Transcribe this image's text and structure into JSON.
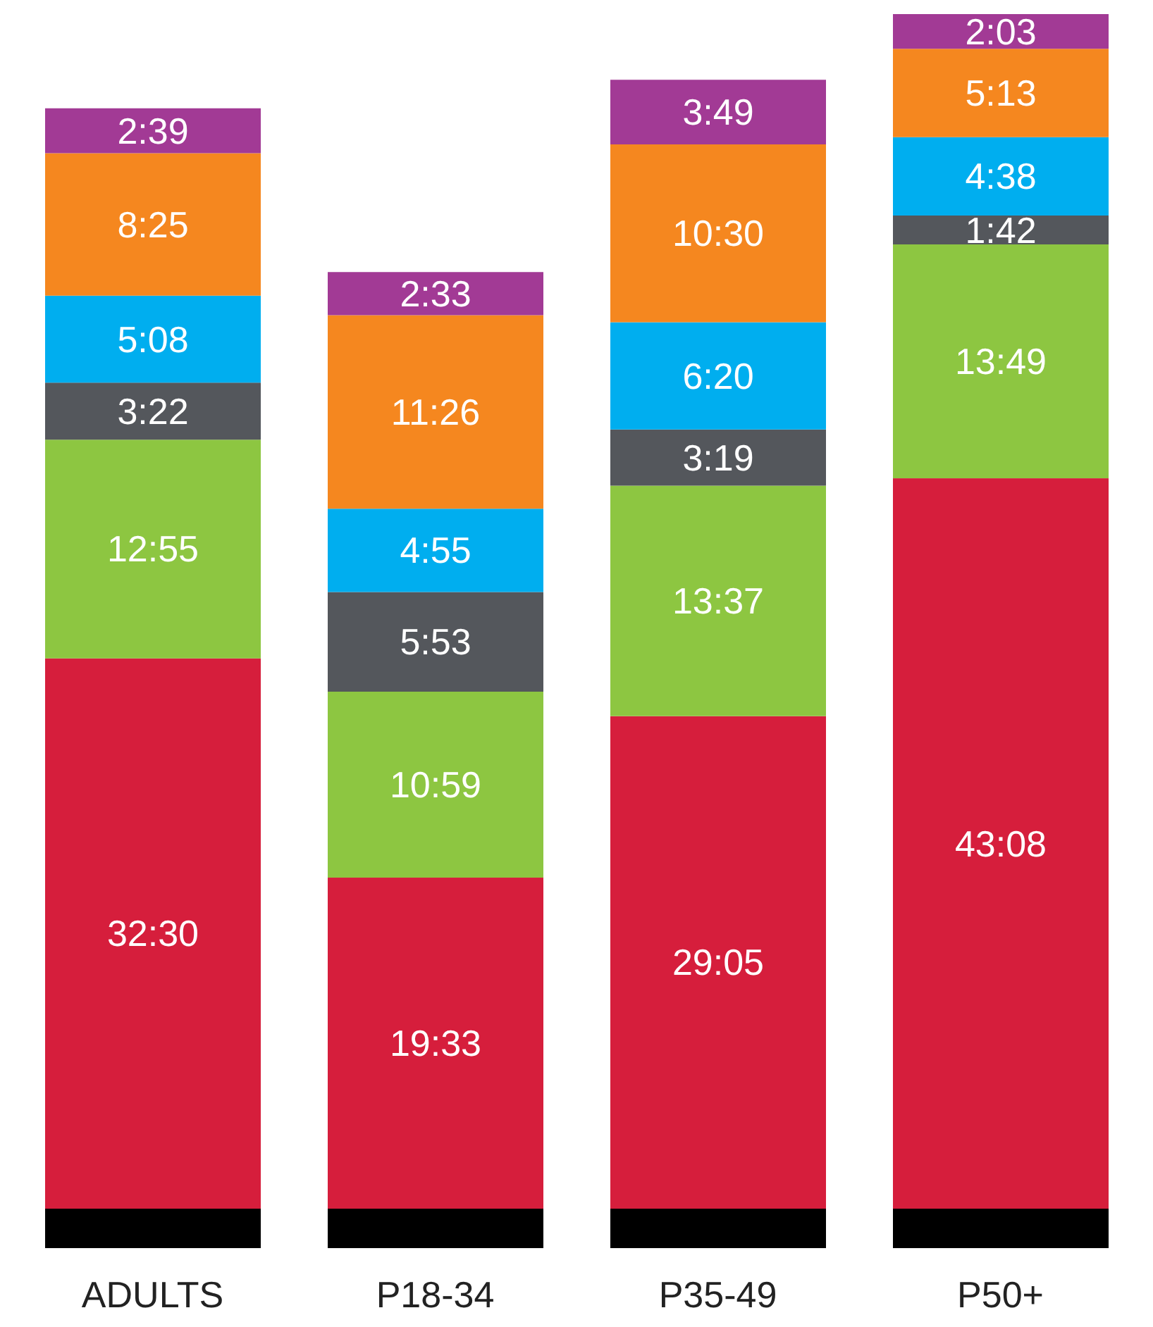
{
  "chart_data": {
    "type": "bar",
    "stacked": true,
    "categories": [
      "ADULTS",
      "P18-34",
      "P35-49",
      "P50+"
    ],
    "series": [
      {
        "color": "#d61e3c",
        "values": [
          1950,
          1173,
          1745,
          2588
        ],
        "value_labels": [
          "32:30",
          "19:33",
          "29:05",
          "43:08"
        ]
      },
      {
        "color": "#8dc641",
        "values": [
          775,
          659,
          817,
          829
        ],
        "value_labels": [
          "12:55",
          "10:59",
          "13:37",
          "13:49"
        ]
      },
      {
        "color": "#54575c",
        "values": [
          202,
          353,
          199,
          102
        ],
        "value_labels": [
          "3:22",
          "5:53",
          "3:19",
          "1:42"
        ]
      },
      {
        "color": "#00aeef",
        "values": [
          308,
          295,
          380,
          278
        ],
        "value_labels": [
          "5:08",
          "4:55",
          "6:20",
          "4:38"
        ]
      },
      {
        "color": "#f5871f",
        "values": [
          505,
          686,
          630,
          313
        ],
        "value_labels": [
          "8:25",
          "11:26",
          "10:30",
          "5:13"
        ]
      },
      {
        "color": "#a23a95",
        "values": [
          159,
          153,
          229,
          123
        ],
        "value_labels": [
          "2:39",
          "2:33",
          "3:49",
          "2:03"
        ]
      }
    ],
    "legend": false,
    "grid": false
  }
}
